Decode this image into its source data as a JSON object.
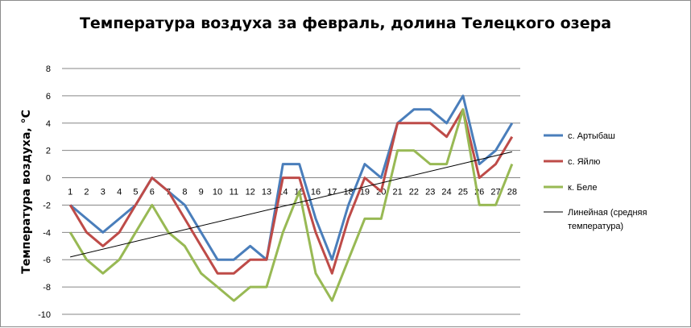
{
  "chart_data": {
    "type": "line",
    "title": "Температура воздуха за февраль, долина Телецкого озера",
    "ylabel": "Температура воздуха, °С",
    "xlabel": "",
    "ylim": [
      -10,
      8
    ],
    "yticks": [
      8,
      6,
      4,
      2,
      0,
      -2,
      -4,
      -6,
      -8,
      -10
    ],
    "categories": [
      "1",
      "2",
      "3",
      "4",
      "5",
      "6",
      "7",
      "8",
      "9",
      "10",
      "11",
      "12",
      "13",
      "14",
      "15",
      "16",
      "17",
      "18",
      "19",
      "20",
      "21",
      "22",
      "23",
      "24",
      "25",
      "26",
      "27",
      "28"
    ],
    "grid": "horizontal",
    "legend_position": "right",
    "series": [
      {
        "name": "с. Артыбаш",
        "color": "#4a7ebb",
        "values": [
          -2,
          -3,
          -4,
          -3,
          -2,
          0,
          -1,
          -2,
          -4,
          -6,
          -6,
          -5,
          -6,
          1,
          1,
          -3,
          -6,
          -2,
          1,
          0,
          4,
          5,
          5,
          4,
          6,
          1,
          2,
          4
        ]
      },
      {
        "name": "с. Яйлю",
        "color": "#be4b48",
        "values": [
          -2,
          -4,
          -5,
          -4,
          -2,
          0,
          -1,
          -3,
          -5,
          -7,
          -7,
          -6,
          -6,
          0,
          0,
          -4,
          -7,
          -3,
          0,
          -1,
          4,
          4,
          4,
          3,
          5,
          0,
          1,
          3
        ]
      },
      {
        "name": "к. Беле",
        "color": "#98b954",
        "values": [
          -4,
          -6,
          -7,
          -6,
          -4,
          -2,
          -4,
          -5,
          -7,
          -8,
          -9,
          -8,
          -8,
          -4,
          -1,
          -7,
          -9,
          -6,
          -3,
          -3,
          2,
          2,
          1,
          1,
          5,
          -2,
          -2,
          1
        ]
      }
    ],
    "trendline": {
      "name": "Линейная (средняя температура)",
      "name_lines": [
        "Линейная (средняя",
        "температура)"
      ],
      "color": "#000000",
      "start": -5.8,
      "end": 1.9
    }
  }
}
